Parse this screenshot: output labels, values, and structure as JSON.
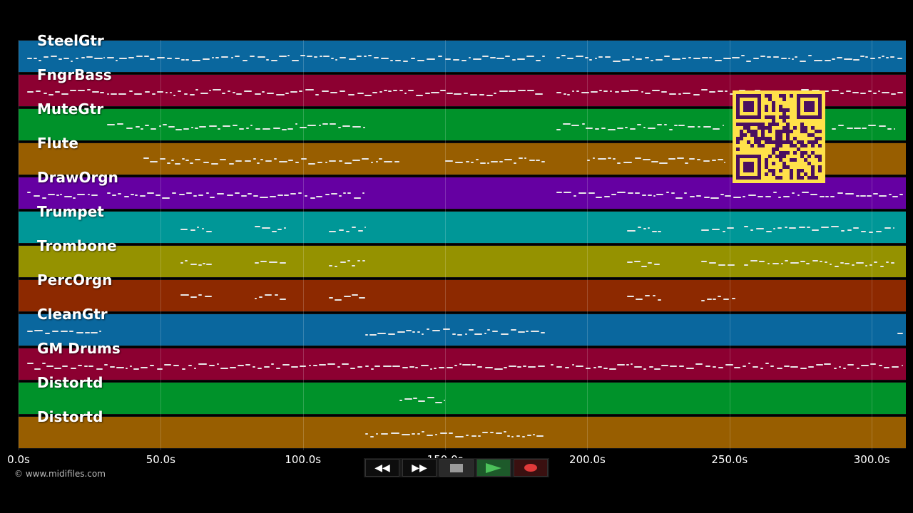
{
  "timeline": {
    "max_seconds": 312,
    "ticks": [
      {
        "label": "0.0s",
        "t": 0
      },
      {
        "label": "50.0s",
        "t": 50
      },
      {
        "label": "100.0s",
        "t": 100
      },
      {
        "label": "150.0s",
        "t": 150
      },
      {
        "label": "200.0s",
        "t": 200
      },
      {
        "label": "250.0s",
        "t": 250
      },
      {
        "label": "300.0s",
        "t": 300
      }
    ]
  },
  "tracks": [
    {
      "name": "SteelGtr",
      "color": "#0a679e",
      "segments": [
        [
          3,
          30
        ],
        [
          31,
          119
        ],
        [
          119,
          185
        ],
        [
          189,
          311
        ]
      ]
    },
    {
      "name": "FngrBass",
      "color": "#8c0031",
      "segments": [
        [
          3,
          30
        ],
        [
          31,
          185
        ],
        [
          189,
          311
        ]
      ]
    },
    {
      "name": "MuteGtr",
      "color": "#00922a",
      "segments": [
        [
          31,
          122
        ],
        [
          189,
          248
        ],
        [
          286,
          308
        ]
      ]
    },
    {
      "name": "Flute",
      "color": "#985e00",
      "segments": [
        [
          44,
          134
        ],
        [
          150,
          185
        ],
        [
          200,
          248
        ]
      ]
    },
    {
      "name": "DrawOrgn",
      "color": "#6500a2",
      "segments": [
        [
          3,
          28
        ],
        [
          31,
          122
        ],
        [
          189,
          311
        ]
      ]
    },
    {
      "name": "Trumpet",
      "color": "#009797",
      "segments": [
        [
          57,
          68
        ],
        [
          83,
          94
        ],
        [
          109,
          122
        ],
        [
          214,
          226
        ],
        [
          240,
          252
        ],
        [
          255,
          308
        ]
      ]
    },
    {
      "name": "Trombone",
      "color": "#959200",
      "segments": [
        [
          57,
          68
        ],
        [
          83,
          94
        ],
        [
          109,
          122
        ],
        [
          214,
          226
        ],
        [
          240,
          252
        ],
        [
          255,
          308
        ]
      ]
    },
    {
      "name": "PercOrgn",
      "color": "#8d2900",
      "segments": [
        [
          57,
          68
        ],
        [
          83,
          94
        ],
        [
          109,
          122
        ],
        [
          214,
          226
        ],
        [
          240,
          252
        ]
      ]
    },
    {
      "name": "CleanGtr",
      "color": "#0a679e",
      "segments": [
        [
          3,
          29
        ],
        [
          122,
          185
        ],
        [
          309,
          311
        ]
      ]
    },
    {
      "name": "GM Drums",
      "color": "#8c0031",
      "segments": [
        [
          3,
          30
        ],
        [
          30,
          185
        ],
        [
          187,
          311
        ]
      ]
    },
    {
      "name": "Distortd",
      "color": "#00922a",
      "segments": [
        [
          134,
          150
        ]
      ]
    },
    {
      "name": "Distortd",
      "color": "#985e00",
      "segments": [
        [
          122,
          185
        ]
      ]
    }
  ],
  "copyright": "© www.midifiles.com",
  "qr": {
    "fg": "#4a1060",
    "bg": "#ffe14a"
  },
  "transport": {
    "buttons": [
      {
        "name": "rewind-button",
        "icon": "rewind-icon",
        "glyph": "◀◀"
      },
      {
        "name": "fast-forward-button",
        "icon": "fast-forward-icon",
        "glyph": "▶▶"
      },
      {
        "name": "stop-button",
        "icon": "stop-icon"
      },
      {
        "name": "play-button",
        "icon": "play-icon"
      },
      {
        "name": "record-button",
        "icon": "record-icon"
      }
    ]
  }
}
